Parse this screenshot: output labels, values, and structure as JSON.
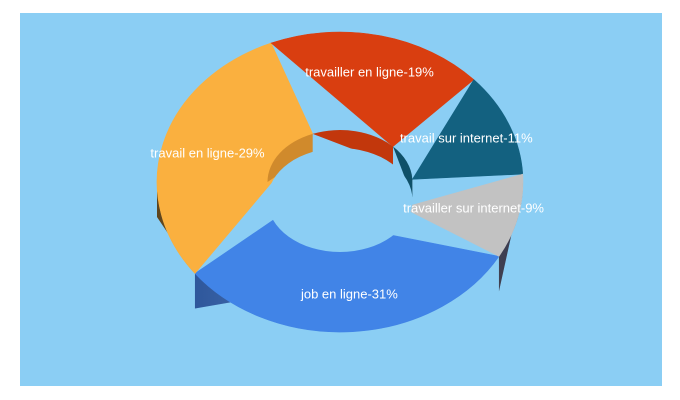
{
  "panel": {
    "background_color": "#8BCEF4"
  },
  "chart_data": {
    "type": "pie",
    "style": "3d-donut",
    "title": "",
    "legend": "none",
    "unit": "%",
    "label_format": "{label}-{value}%",
    "label_color": "#FFFFFF",
    "series": [
      {
        "label": "job en ligne",
        "value": 31,
        "color": "#4184E7",
        "side_color": "#2B5CA8",
        "wall_color": "#3568BC"
      },
      {
        "label": "travail en ligne",
        "value": 29,
        "color": "#FAB03F",
        "side_color": "#73541B",
        "wall_color": "#D08A2C"
      },
      {
        "label": "travailler en ligne",
        "value": 19,
        "color": "#D93E10",
        "side_color": "#97290A",
        "wall_color": "#C2370C"
      },
      {
        "label": "travail sur internet",
        "value": 11,
        "color": "#136180",
        "side_color": "#0B3D53",
        "wall_color": "#0F5068"
      },
      {
        "label": "travailler sur internet",
        "value": 9,
        "color": "#C2C2C2",
        "side_color": "#5F5F61",
        "wall_color": "#A5A5A6"
      }
    ],
    "slice_labels_visible": [
      "job en ligne-31%",
      "travail en ligne-29%",
      "travailler en ligne-19%",
      "travail sur internet-11%",
      "travailler sur internet-9%"
    ]
  }
}
